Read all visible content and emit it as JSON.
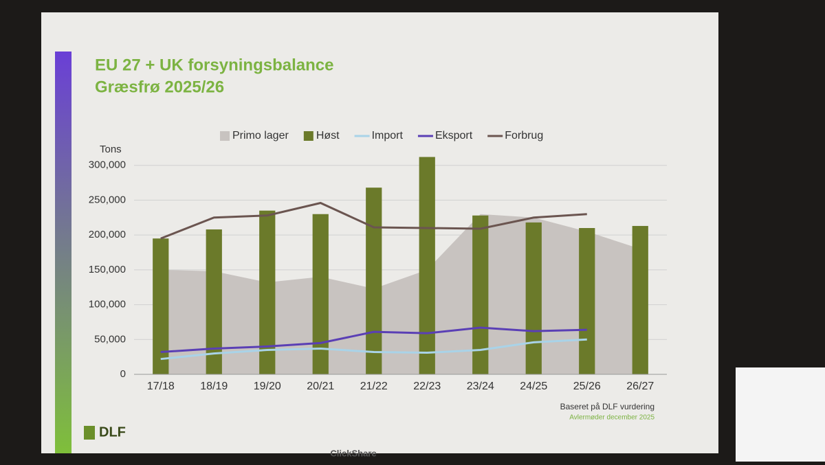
{
  "chart_data": {
    "type": "combo",
    "title": "EU 27 + UK forsyningsbalance",
    "subtitle": "Græsfrø 2025/26",
    "y_label": "Tons",
    "categories": [
      "17/18",
      "18/19",
      "19/20",
      "20/21",
      "21/22",
      "22/23",
      "23/24",
      "24/25",
      "25/26",
      "26/27"
    ],
    "series": [
      {
        "name": "Primo lager",
        "type": "area",
        "color": "#c8c3c0",
        "values": [
          150000,
          148000,
          132000,
          140000,
          123000,
          150000,
          230000,
          225000,
          205000,
          180000
        ]
      },
      {
        "name": "Høst",
        "type": "bar",
        "color": "#6b7a2a",
        "values": [
          195000,
          208000,
          235000,
          230000,
          268000,
          312000,
          228000,
          218000,
          210000,
          213000
        ]
      },
      {
        "name": "Import",
        "type": "line",
        "color": "#a9d3e8",
        "values": [
          22000,
          30000,
          35000,
          37000,
          32000,
          31000,
          35000,
          46000,
          50000,
          null
        ]
      },
      {
        "name": "Eksport",
        "type": "line",
        "color": "#5a3fb5",
        "values": [
          32000,
          37000,
          40000,
          45000,
          61000,
          59000,
          67000,
          62000,
          64000,
          null
        ]
      },
      {
        "name": "Forbrug",
        "type": "line",
        "color": "#6b5550",
        "values": [
          195000,
          225000,
          228000,
          246000,
          211000,
          210000,
          209000,
          225000,
          230000,
          null
        ]
      }
    ],
    "ylim": [
      0,
      350000
    ],
    "yticks": [
      0,
      {
        "value": 50000,
        "label": "50,000"
      },
      {
        "value": 100000,
        "label": "100,000"
      },
      {
        "value": 150000,
        "label": "150,000"
      },
      {
        "value": 200000,
        "label": "200,000"
      },
      {
        "value": 250000,
        "label": "250,000"
      },
      {
        "value": 300000,
        "label": "300,000"
      }
    ],
    "grid": true,
    "source": "Baseret på DLF vurdering",
    "note": "Avlermøder december 2025"
  },
  "logo": "DLF",
  "projector_label": "ClickShare"
}
